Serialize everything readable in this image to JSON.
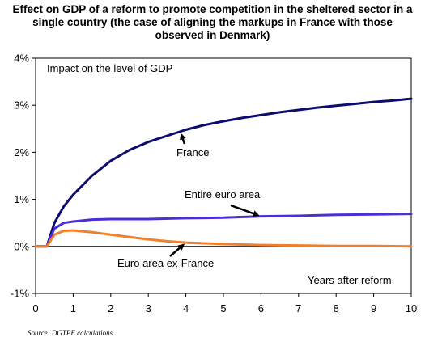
{
  "title_lines": [
    "Effect on GDP of a reform to promote competition in the sheltered sector in a",
    "single country (the case of aligning the markups in France with those",
    "observed in Denmark)"
  ],
  "source": "Source: DGTPE calculations.",
  "chart_data": {
    "type": "line",
    "title": "Effect on GDP of a reform to promote competition in the sheltered sector in a single country (the case of aligning the markups in France with those observed in Denmark)",
    "ylabel": "Impact on the level of GDP",
    "xlabel": "Years after reform",
    "xlim": [
      0,
      10
    ],
    "ylim": [
      -1,
      4
    ],
    "x_ticks": [
      "0",
      "1",
      "2",
      "3",
      "4",
      "5",
      "6",
      "7",
      "8",
      "9",
      "10"
    ],
    "y_ticks": [
      "4%",
      "3%",
      "2%",
      "1%",
      "0%",
      "-1%"
    ],
    "grid": false,
    "series": [
      {
        "name": "France",
        "color": "#0c0c6e",
        "x": [
          0,
          0.3,
          0.5,
          0.75,
          1,
          1.5,
          2,
          2.5,
          3,
          3.5,
          4,
          4.5,
          5,
          5.5,
          6,
          6.5,
          7,
          7.5,
          8,
          8.5,
          9,
          9.5,
          10
        ],
        "y": [
          0,
          0,
          0.5,
          0.85,
          1.1,
          1.5,
          1.82,
          2.05,
          2.22,
          2.35,
          2.48,
          2.58,
          2.66,
          2.73,
          2.79,
          2.85,
          2.9,
          2.95,
          2.99,
          3.03,
          3.07,
          3.1,
          3.14
        ]
      },
      {
        "name": "Entire euro area",
        "color": "#4b2fd4",
        "x": [
          0,
          0.3,
          0.5,
          0.75,
          1,
          1.5,
          2,
          3,
          4,
          5,
          6,
          7,
          8,
          9,
          10
        ],
        "y": [
          0,
          0,
          0.38,
          0.5,
          0.53,
          0.57,
          0.58,
          0.58,
          0.6,
          0.61,
          0.64,
          0.65,
          0.67,
          0.68,
          0.69
        ]
      },
      {
        "name": "Euro area ex-France",
        "color": "#f07f2e",
        "x": [
          0,
          0.3,
          0.5,
          0.75,
          1,
          1.5,
          2,
          2.5,
          3,
          3.5,
          4,
          5,
          6,
          7,
          8,
          9,
          10
        ],
        "y": [
          0,
          0,
          0.25,
          0.33,
          0.34,
          0.3,
          0.25,
          0.2,
          0.15,
          0.11,
          0.08,
          0.05,
          0.03,
          0.02,
          0.01,
          0.01,
          0.0
        ]
      }
    ],
    "annotations": [
      {
        "text": "France",
        "series": "France",
        "arrow_to_x": 3.85
      },
      {
        "text": "Entire euro area",
        "series": "Entire euro area",
        "arrow_to_x": 6.0
      },
      {
        "text": "Euro area ex-France",
        "series": "Euro area ex-France",
        "arrow_to_x": 4.0
      }
    ]
  }
}
